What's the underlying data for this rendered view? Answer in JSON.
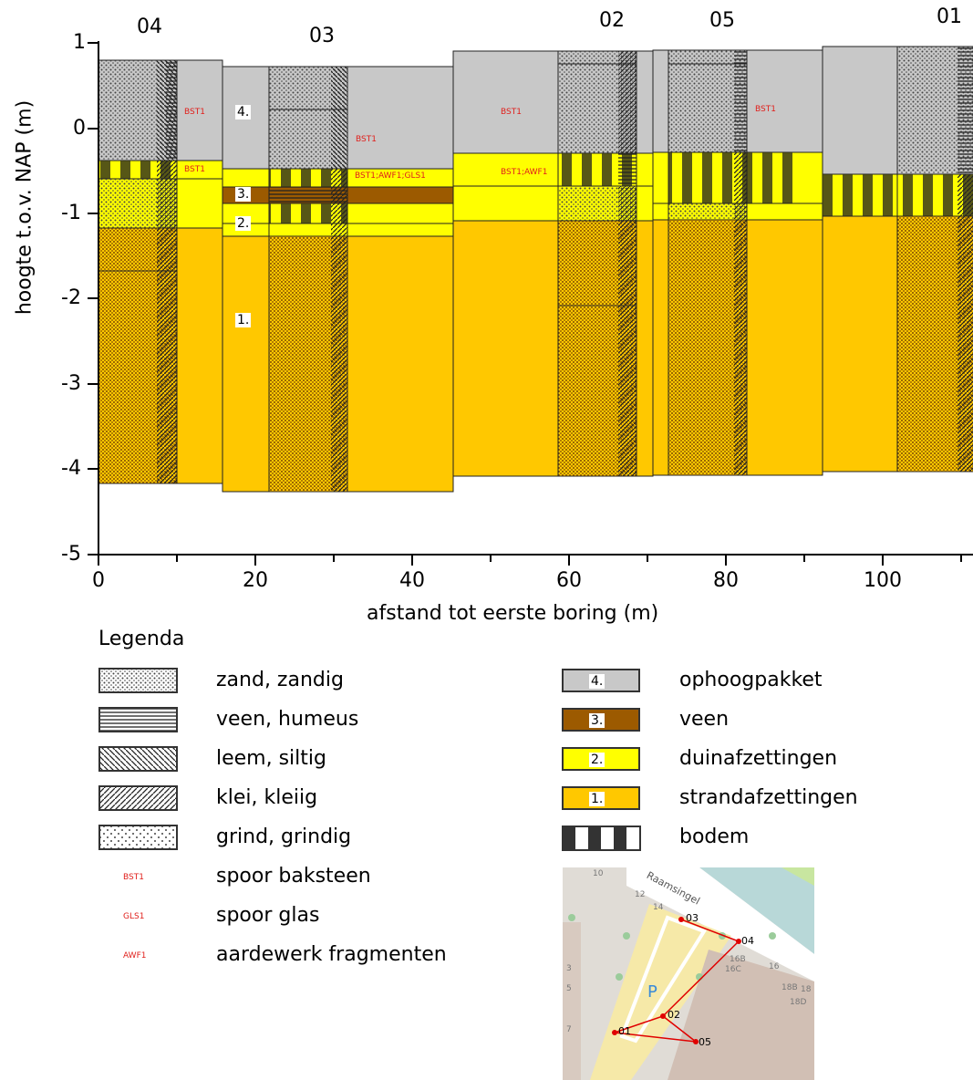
{
  "borehole_names": [
    "04",
    "03",
    "02",
    "05",
    "01"
  ],
  "axes": {
    "ylabel": "hoogte t.o.v. NAP (m)",
    "xlabel": "afstand tot eerste boring (m)",
    "yticks": [
      "1",
      "0",
      "-1",
      "-2",
      "-3",
      "-4",
      "-5"
    ],
    "xticks": [
      "0",
      "20",
      "40",
      "60",
      "80",
      "100"
    ]
  },
  "annotations": {
    "bst1": "BST1",
    "bst1_awf1_gls1": "BST1;AWF1;GLS1",
    "bst1_awf1": "BST1;AWF1",
    "unit4": "4.",
    "unit3": "3.",
    "unit2": "2.",
    "unit1": "1."
  },
  "legend": {
    "title": "Legenda",
    "lithology": [
      {
        "label": "zand, zandig",
        "pattern": "dots"
      },
      {
        "label": "veen, humeus",
        "pattern": "horizontal-lines"
      },
      {
        "label": "leem, siltig",
        "pattern": "backslash-hatch"
      },
      {
        "label": "klei, kleiig",
        "pattern": "slash-hatch"
      },
      {
        "label": "grind, grindig",
        "pattern": "sparse-dots"
      }
    ],
    "markers": [
      {
        "code": "BST1",
        "label": "spoor baksteen"
      },
      {
        "code": "GLS1",
        "label": "spoor glas"
      },
      {
        "code": "AWF1",
        "label": "aardewerk fragmenten"
      }
    ],
    "units": [
      {
        "num": "4.",
        "label": "ophoogpakket",
        "color": "#c8c8c8"
      },
      {
        "num": "3.",
        "label": "veen",
        "color": "#9c5a00"
      },
      {
        "num": "2.",
        "label": "duinafzettingen",
        "color": "#ffff00"
      },
      {
        "num": "1.",
        "label": "strandafzettingen",
        "color": "#ffc800"
      },
      {
        "num": "",
        "label": "bodem",
        "color": "#333333"
      }
    ]
  },
  "map": {
    "street": "Raamsingel",
    "parking": "P",
    "points": [
      "01",
      "02",
      "03",
      "04",
      "05"
    ],
    "house_numbers": [
      "10",
      "12",
      "14",
      "16B",
      "16C",
      "16",
      "18B",
      "18",
      "18D",
      "3",
      "5",
      "7"
    ]
  }
}
